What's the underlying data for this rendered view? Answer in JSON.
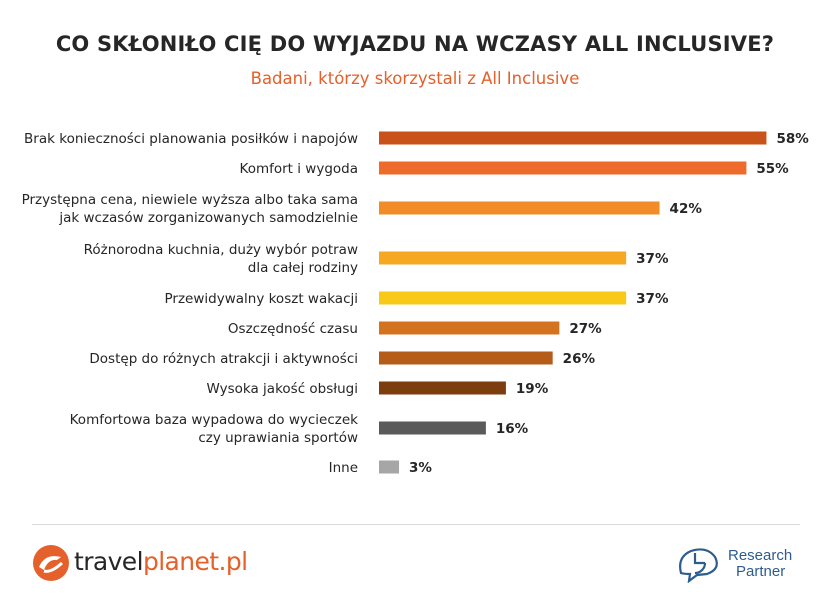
{
  "title": "CO SKŁONIŁO CIĘ DO WYJAZDU NA WCZASY ALL INCLUSIVE?",
  "subtitle": "Badani, którzy skorzystali z All Inclusive",
  "chart_data": {
    "type": "bar",
    "orientation": "horizontal",
    "title": "CO SKŁONIŁO CIĘ DO WYJAZDU NA WCZASY ALL INCLUSIVE?",
    "subtitle": "Badani, którzy skorzystali z All Inclusive",
    "unit": "%",
    "grid": false,
    "categories": [
      [
        "Brak konieczności planowania posiłków i napojów"
      ],
      [
        "Komfort i wygoda"
      ],
      [
        "Przystępna cena, niewiele wyższa albo taka sama",
        "jak wczasów zorganizowanych samodzielnie"
      ],
      [
        "Różnorodna kuchnia, duży wybór potraw",
        "dla całej rodziny"
      ],
      [
        "Przewidywalny koszt wakacji"
      ],
      [
        "Oszczędność czasu"
      ],
      [
        "Dostęp do różnych atrakcji i aktywności"
      ],
      [
        "Wysoka jakość obsługi"
      ],
      [
        "Komfortowa baza wypadowa do wycieczek",
        "czy uprawiania sportów"
      ],
      [
        "Inne"
      ]
    ],
    "values": [
      58,
      55,
      42,
      37,
      37,
      27,
      26,
      19,
      16,
      3
    ],
    "value_labels": [
      "58%",
      "55%",
      "42%",
      "37%",
      "37%",
      "27%",
      "26%",
      "19%",
      "16%",
      "3%"
    ],
    "colors": [
      "#c9521b",
      "#ee6b2c",
      "#f28c28",
      "#f6a823",
      "#f9c91a",
      "#d4731f",
      "#b55c19",
      "#7d3e0f",
      "#5a5a5a",
      "#a6a6a6"
    ]
  },
  "footer": {
    "logo_left_main": "travel",
    "logo_left_accent": "planet.pl",
    "logo_right_line1": "Research",
    "logo_right_line2": "Partner",
    "accent_color": "#e5602a",
    "rp_color": "#2e5c8f"
  }
}
